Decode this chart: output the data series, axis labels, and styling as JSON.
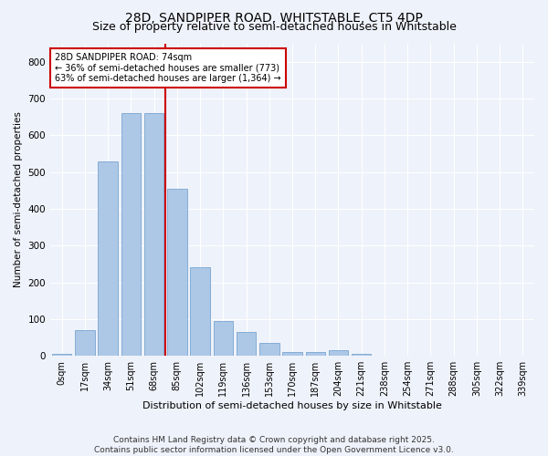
{
  "title1": "28D, SANDPIPER ROAD, WHITSTABLE, CT5 4DP",
  "title2": "Size of property relative to semi-detached houses in Whitstable",
  "xlabel": "Distribution of semi-detached houses by size in Whitstable",
  "ylabel": "Number of semi-detached properties",
  "categories": [
    "0sqm",
    "17sqm",
    "34sqm",
    "51sqm",
    "68sqm",
    "85sqm",
    "102sqm",
    "119sqm",
    "136sqm",
    "153sqm",
    "170sqm",
    "187sqm",
    "204sqm",
    "221sqm",
    "238sqm",
    "254sqm",
    "271sqm",
    "288sqm",
    "305sqm",
    "322sqm",
    "339sqm"
  ],
  "values": [
    5,
    70,
    530,
    660,
    660,
    455,
    240,
    95,
    65,
    35,
    10,
    10,
    15,
    5,
    0,
    0,
    0,
    0,
    0,
    0,
    0
  ],
  "bar_color": "#adc8e6",
  "bar_edge_color": "#6699cc",
  "property_label": "28D SANDPIPER ROAD: 74sqm",
  "pct_smaller": 36,
  "pct_larger": 63,
  "n_smaller": 773,
  "n_larger": 1364,
  "vline_color": "#cc0000",
  "annotation_box_color": "#cc0000",
  "vline_x": 4.5,
  "ylim": [
    0,
    850
  ],
  "yticks": [
    0,
    100,
    200,
    300,
    400,
    500,
    600,
    700,
    800
  ],
  "footer1": "Contains HM Land Registry data © Crown copyright and database right 2025.",
  "footer2": "Contains public sector information licensed under the Open Government Licence v3.0.",
  "bg_color": "#eef2fa",
  "plot_bg_color": "#eef2fa",
  "title1_fontsize": 10,
  "title2_fontsize": 9,
  "xlabel_fontsize": 8,
  "ylabel_fontsize": 7.5,
  "tick_fontsize": 7,
  "footer_fontsize": 6.5
}
